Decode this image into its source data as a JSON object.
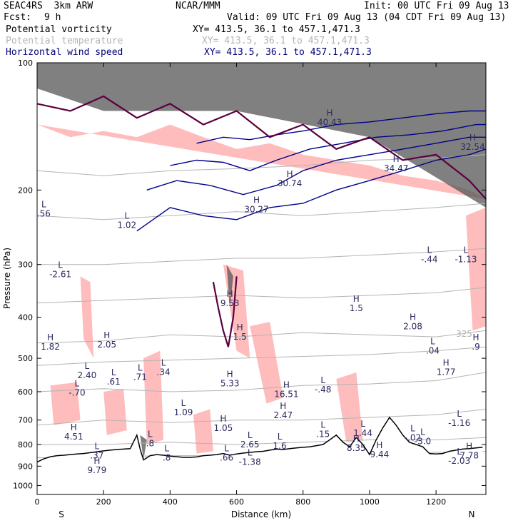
{
  "header": {
    "model": "SEAC4RS  3km ARW",
    "org": "NCAR/MMM",
    "init": "Init: 00 UTC Fri 09 Aug 13",
    "fcst_label": "Fcst:",
    "fcst_value": "9 h",
    "valid": "Valid: 09 UTC Fri 09 Aug 13 (04 CDT Fri 09 Aug 13)"
  },
  "legend": [
    {
      "name": "Potential vorticity",
      "coords": "XY= 413.5, 36.1 to 457.1,471.3",
      "color": "#000000"
    },
    {
      "name": "Potential temperature",
      "coords": "XY= 413.5, 36.1 to 457.1,471.3",
      "color": "#b4b4b4"
    },
    {
      "name": "Horizontal wind speed",
      "coords": "XY= 413.5, 36.1 to 457.1,471.3",
      "color": "#00007a"
    }
  ],
  "colors": {
    "pv_fill": "#ffbcbc",
    "pv_contour": "#5a0040",
    "theta_contour": "#b4b4b4",
    "wind_contour": "#00008b",
    "terrain_line": "#000000",
    "high_pv": "#555555"
  },
  "chart_data": {
    "type": "contour cross-section",
    "xlabel": "Distance (km)",
    "ylabel": "Pressure (hPa)",
    "x_ticks": [
      0,
      200,
      400,
      600,
      800,
      1000,
      1200
    ],
    "y_ticks": [
      100,
      200,
      300,
      400,
      500,
      600,
      700,
      800,
      900,
      1000
    ],
    "xlim": [
      0,
      1350
    ],
    "ylim": [
      1050,
      100
    ],
    "y_scale": "log",
    "edge_labels": {
      "left": "S",
      "right": "N"
    },
    "terrain": {
      "x": [
        0,
        20,
        40,
        60,
        80,
        100,
        120,
        140,
        160,
        180,
        200,
        220,
        240,
        260,
        280,
        300,
        310,
        320,
        330,
        340,
        360,
        380,
        400,
        420,
        440,
        460,
        480,
        500,
        520,
        540,
        560,
        580,
        600,
        620,
        640,
        660,
        680,
        700,
        720,
        740,
        760,
        780,
        800,
        820,
        840,
        860,
        880,
        900,
        920,
        940,
        960,
        980,
        1000,
        1020,
        1040,
        1060,
        1080,
        1100,
        1120,
        1140,
        1160,
        1180,
        1200,
        1220,
        1240,
        1260,
        1280,
        1300,
        1320,
        1340
      ],
      "p": [
        880,
        865,
        855,
        850,
        848,
        845,
        842,
        840,
        836,
        832,
        828,
        825,
        822,
        820,
        818,
        760,
        820,
        870,
        860,
        850,
        845,
        848,
        852,
        855,
        858,
        858,
        856,
        850,
        848,
        845,
        840,
        848,
        842,
        838,
        835,
        832,
        830,
        825,
        820,
        822,
        818,
        815,
        812,
        810,
        805,
        800,
        780,
        760,
        790,
        810,
        770,
        800,
        845,
        780,
        730,
        690,
        720,
        760,
        790,
        800,
        810,
        840,
        842,
        840,
        830,
        825,
        820,
        818,
        815,
        812
      ]
    },
    "theta_contours": [
      {
        "level": "",
        "x": [
          0,
          200,
          400,
          600,
          800,
          1000,
          1200,
          1350
        ],
        "p": [
          860,
          855,
          850,
          850,
          850,
          840,
          835,
          830
        ]
      },
      {
        "level": "",
        "x": [
          0,
          200,
          400,
          600,
          800,
          1000,
          1200,
          1350
        ],
        "p": [
          800,
          800,
          790,
          800,
          790,
          780,
          780,
          770
        ]
      },
      {
        "level": "",
        "x": [
          0,
          200,
          400,
          600,
          800,
          1000,
          1200,
          1350
        ],
        "p": [
          720,
          700,
          710,
          700,
          700,
          690,
          680,
          660
        ]
      },
      {
        "level": "",
        "x": [
          0,
          200,
          400,
          600,
          800,
          1000,
          1200,
          1350
        ],
        "p": [
          600,
          590,
          600,
          595,
          580,
          575,
          565,
          540
        ]
      },
      {
        "level": "",
        "x": [
          0,
          200,
          400,
          600,
          800,
          1000,
          1200,
          1350
        ],
        "p": [
          520,
          510,
          505,
          500,
          495,
          490,
          480,
          470
        ]
      },
      {
        "level": "325",
        "x": [
          0,
          200,
          400,
          600,
          800,
          1000,
          1200,
          1350
        ],
        "p": [
          460,
          455,
          440,
          445,
          435,
          440,
          445,
          430
        ]
      },
      {
        "level": "",
        "x": [
          0,
          200,
          400,
          600,
          800,
          1000,
          1200,
          1350
        ],
        "p": [
          370,
          365,
          360,
          355,
          360,
          355,
          350,
          340
        ]
      },
      {
        "level": "",
        "x": [
          0,
          200,
          400,
          600,
          800,
          1000,
          1200,
          1350
        ],
        "p": [
          300,
          300,
          295,
          290,
          290,
          285,
          280,
          275
        ]
      },
      {
        "level": "",
        "x": [
          0,
          200,
          400,
          600,
          800,
          1000,
          1200,
          1350
        ],
        "p": [
          230,
          235,
          230,
          225,
          230,
          225,
          220,
          215
        ]
      },
      {
        "level": "",
        "x": [
          0,
          200,
          400,
          600,
          800,
          1000,
          1200,
          1350
        ],
        "p": [
          180,
          185,
          180,
          178,
          175,
          170,
          168,
          165
        ]
      }
    ],
    "wind_contours": [
      {
        "x": [
          300,
          400,
          500,
          600,
          700,
          800,
          900,
          1000,
          1100,
          1200,
          1300,
          1350
        ],
        "p": [
          250,
          220,
          230,
          235,
          220,
          215,
          200,
          190,
          180,
          170,
          165,
          160
        ]
      },
      {
        "x": [
          330,
          420,
          520,
          620,
          720,
          800,
          900,
          1000,
          1100,
          1200,
          1300,
          1350
        ],
        "p": [
          200,
          190,
          195,
          205,
          195,
          180,
          170,
          165,
          160,
          155,
          150,
          150
        ]
      },
      {
        "x": [
          400,
          480,
          560,
          640,
          720,
          820,
          920,
          1020,
          1120,
          1220,
          1320,
          1350
        ],
        "p": [
          175,
          170,
          172,
          180,
          170,
          160,
          155,
          150,
          148,
          145,
          140,
          140
        ]
      },
      {
        "x": [
          480,
          560,
          640,
          720,
          800,
          900,
          1000,
          1100,
          1200,
          1300,
          1350
        ],
        "p": [
          155,
          150,
          152,
          148,
          145,
          140,
          138,
          135,
          132,
          130,
          130
        ]
      }
    ],
    "pv_contours": [
      {
        "x": [
          0,
          100,
          200,
          300,
          400,
          500,
          600,
          700,
          800,
          900,
          1000,
          1100,
          1200,
          1300,
          1350
        ],
        "p": [
          125,
          130,
          120,
          135,
          125,
          140,
          130,
          150,
          140,
          160,
          150,
          170,
          165,
          190,
          210
        ]
      },
      {
        "x": [
          530,
          545,
          560,
          575,
          590,
          600
        ],
        "p": [
          330,
          380,
          430,
          470,
          400,
          320
        ]
      }
    ],
    "pv_regions": [
      {
        "x": [
          0,
          100,
          200,
          300,
          400,
          500,
          600,
          700,
          800,
          900,
          1000,
          1100,
          1200,
          1300,
          1350
        ],
        "p": [
          140,
          150,
          145,
          150,
          140,
          150,
          160,
          155,
          165,
          170,
          175,
          185,
          190,
          200,
          210
        ]
      },
      {
        "x": [
          130,
          160,
          170,
          140
        ],
        "p": [
          320,
          330,
          500,
          450
        ]
      },
      {
        "x": [
          320,
          370,
          380,
          330
        ],
        "p": [
          500,
          480,
          780,
          800
        ]
      },
      {
        "x": [
          560,
          620,
          640,
          600
        ],
        "p": [
          300,
          310,
          500,
          480
        ]
      },
      {
        "x": [
          640,
          700,
          740,
          690
        ],
        "p": [
          420,
          410,
          620,
          640
        ]
      },
      {
        "x": [
          900,
          960,
          980,
          930
        ],
        "p": [
          560,
          540,
          780,
          790
        ]
      },
      {
        "x": [
          1290,
          1350,
          1350,
          1310
        ],
        "p": [
          230,
          220,
          420,
          430
        ]
      },
      {
        "x": [
          40,
          120,
          130,
          50
        ],
        "p": [
          580,
          570,
          700,
          720
        ]
      },
      {
        "x": [
          200,
          260,
          270,
          210
        ],
        "p": [
          600,
          590,
          740,
          760
        ]
      },
      {
        "x": [
          470,
          520,
          530,
          480
        ],
        "p": [
          680,
          660,
          830,
          840
        ]
      }
    ],
    "high_pv_regions": [
      {
        "x": [
          0,
          200,
          400,
          600,
          800,
          1000,
          1200,
          1350,
          1350,
          1000,
          600,
          200,
          0
        ],
        "p": [
          100,
          100,
          100,
          100,
          100,
          100,
          100,
          100,
          220,
          150,
          130,
          130,
          115
        ]
      },
      {
        "x": [
          310,
          330,
          320
        ],
        "p": [
          760,
          780,
          870
        ]
      },
      {
        "x": [
          570,
          590,
          580
        ],
        "p": [
          300,
          320,
          380
        ]
      }
    ],
    "extrema_labels": [
      {
        "kind": "L",
        "value": ".56",
        "x": 20,
        "p": 230
      },
      {
        "kind": "L",
        "value": "1.02",
        "x": 270,
        "p": 245
      },
      {
        "kind": "L",
        "value": "-2.61",
        "x": 70,
        "p": 320
      },
      {
        "kind": "H",
        "value": "1.82",
        "x": 40,
        "p": 475
      },
      {
        "kind": "H",
        "value": "2.05",
        "x": 210,
        "p": 470
      },
      {
        "kind": "L",
        "value": "2.40",
        "x": 150,
        "p": 555
      },
      {
        "kind": "L",
        "value": ".61",
        "x": 230,
        "p": 575
      },
      {
        "kind": "L",
        "value": ".71",
        "x": 310,
        "p": 560
      },
      {
        "kind": "L",
        "value": ".34",
        "x": 380,
        "p": 545
      },
      {
        "kind": "H",
        "value": "9.53",
        "x": 580,
        "p": 375
      },
      {
        "kind": "H",
        "value": "1.5",
        "x": 610,
        "p": 450
      },
      {
        "kind": "H",
        "value": "5.33",
        "x": 580,
        "p": 580
      },
      {
        "kind": "L",
        "value": "-.70",
        "x": 120,
        "p": 610
      },
      {
        "kind": "L",
        "value": "1.09",
        "x": 440,
        "p": 680
      },
      {
        "kind": "H",
        "value": "16.51",
        "x": 750,
        "p": 615
      },
      {
        "kind": "H",
        "value": "2.47",
        "x": 740,
        "p": 690
      },
      {
        "kind": "L",
        "value": "-.48",
        "x": 860,
        "p": 600
      },
      {
        "kind": "H",
        "value": "1.5",
        "x": 960,
        "p": 385
      },
      {
        "kind": "H",
        "value": "2.08",
        "x": 1130,
        "p": 425
      },
      {
        "kind": "L",
        "value": "-.44",
        "x": 1180,
        "p": 295
      },
      {
        "kind": "L",
        "value": "-1.13",
        "x": 1290,
        "p": 295
      },
      {
        "kind": "L",
        "value": ".04",
        "x": 1190,
        "p": 485
      },
      {
        "kind": "H",
        "value": "1.77",
        "x": 1230,
        "p": 545
      },
      {
        "kind": "H",
        "value": ".9",
        "x": 1320,
        "p": 475
      },
      {
        "kind": "L",
        "value": "-1.16",
        "x": 1270,
        "p": 720
      },
      {
        "kind": "H",
        "value": "4.51",
        "x": 110,
        "p": 775
      },
      {
        "kind": "L",
        "value": ".37",
        "x": 180,
        "p": 860
      },
      {
        "kind": "H",
        "value": "9.79",
        "x": 180,
        "p": 930
      },
      {
        "kind": "L",
        "value": ".8",
        "x": 340,
        "p": 805
      },
      {
        "kind": "L",
        "value": ".8",
        "x": 390,
        "p": 870
      },
      {
        "kind": "H",
        "value": "1.05",
        "x": 560,
        "p": 740
      },
      {
        "kind": "L",
        "value": "2.65",
        "x": 640,
        "p": 810
      },
      {
        "kind": "L",
        "value": ".66",
        "x": 570,
        "p": 870
      },
      {
        "kind": "L",
        "value": "-1.38",
        "x": 640,
        "p": 890
      },
      {
        "kind": "L",
        "value": "1.6",
        "x": 730,
        "p": 815
      },
      {
        "kind": "L",
        "value": ".15",
        "x": 860,
        "p": 765
      },
      {
        "kind": "L",
        "value": "1.44",
        "x": 980,
        "p": 760
      },
      {
        "kind": "H",
        "value": "8.35",
        "x": 960,
        "p": 825
      },
      {
        "kind": "H",
        "value": "9.44",
        "x": 1030,
        "p": 855
      },
      {
        "kind": "L",
        "value": "-.02",
        "x": 1130,
        "p": 780
      },
      {
        "kind": "L",
        "value": "-3.0",
        "x": 1160,
        "p": 795
      },
      {
        "kind": "H",
        "value": "7.78",
        "x": 1300,
        "p": 860
      },
      {
        "kind": "L",
        "value": "-2.03",
        "x": 1270,
        "p": 885
      },
      {
        "kind": "H",
        "value": "30.27",
        "x": 660,
        "p": 225
      },
      {
        "kind": "H",
        "value": "30.74",
        "x": 760,
        "p": 195
      },
      {
        "kind": "H",
        "value": "34.47",
        "x": 1080,
        "p": 180
      },
      {
        "kind": "H",
        "value": "32.54",
        "x": 1310,
        "p": 160
      },
      {
        "kind": "H",
        "value": "40.43",
        "x": 880,
        "p": 140
      }
    ],
    "theta_level_labels": [
      {
        "text": "325",
        "x": 1260,
        "p": 445
      }
    ]
  }
}
